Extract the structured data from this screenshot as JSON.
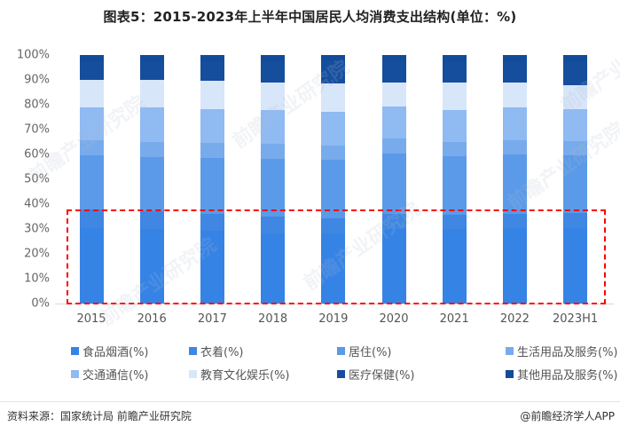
{
  "title": "图表5：2015-2023年上半年中国居民人均消费支出结构(单位：%)",
  "footer": {
    "source": "资料来源：国家统计局 前瞻产业研究院",
    "credit": "@前瞻经济学人APP"
  },
  "watermark": "前瞻产业研究院",
  "highlight_box": {
    "color": "#ff0000",
    "style": "dashed",
    "covers_y_range": [
      0,
      38
    ]
  },
  "y_ticks": [
    "100%",
    "90%",
    "80%",
    "70%",
    "60%",
    "50%",
    "40%",
    "30%",
    "20%",
    "10%",
    "0%"
  ],
  "legend": [
    {
      "label": "食品烟酒(%)",
      "color": "#3683e6"
    },
    {
      "label": "衣着(%)",
      "color": "#3f87e2"
    },
    {
      "label": "居住(%)",
      "color": "#5b9ae8"
    },
    {
      "label": "生活用品及服务(%)",
      "color": "#78abeb"
    },
    {
      "label": "交通通信(%)",
      "color": "#8fbaf2"
    },
    {
      "label": "教育文化娱乐(%)",
      "color": "#d8e6fa"
    },
    {
      "label": "医疗保健(%)",
      "color": "#164e9e"
    },
    {
      "label": "其他用品及服务(%)",
      "color": "#134b9b"
    }
  ],
  "chart_data": {
    "type": "bar",
    "stacked": true,
    "title": "图表5：2015-2023年上半年中国居民人均消费支出结构(单位：%)",
    "xlabel": "",
    "ylabel": "",
    "ylim": [
      0,
      100
    ],
    "y_format": "percent",
    "grid": false,
    "legend_position": "bottom",
    "categories": [
      "2015",
      "2016",
      "2017",
      "2018",
      "2019",
      "2020",
      "2021",
      "2022",
      "2023H1"
    ],
    "series": [
      {
        "name": "食品烟酒(%)",
        "values": [
          30.6,
          30.1,
          29.3,
          28.4,
          28.2,
          30.2,
          29.8,
          30.5,
          30.4
        ]
      },
      {
        "name": "衣着(%)",
        "values": [
          7.4,
          7.0,
          6.8,
          6.5,
          6.2,
          5.8,
          5.9,
          5.6,
          6.1
        ]
      },
      {
        "name": "居住(%)",
        "values": [
          21.8,
          21.9,
          22.4,
          23.4,
          23.4,
          24.6,
          23.4,
          24.0,
          23.2
        ]
      },
      {
        "name": "生活用品及服务(%)",
        "values": [
          6.1,
          6.1,
          6.1,
          6.2,
          5.9,
          5.9,
          5.7,
          5.8,
          5.7
        ]
      },
      {
        "name": "交通通信(%)",
        "values": [
          13.3,
          13.7,
          13.6,
          13.5,
          13.3,
          13.0,
          13.1,
          13.0,
          12.9
        ]
      },
      {
        "name": "教育文化娱乐(%)",
        "values": [
          11.0,
          11.2,
          11.4,
          11.2,
          11.7,
          9.6,
          10.8,
          10.1,
          9.6
        ]
      },
      {
        "name": "医疗保健(%)",
        "values": [
          7.4,
          7.6,
          7.9,
          8.5,
          8.8,
          8.7,
          8.8,
          8.6,
          9.6
        ]
      },
      {
        "name": "其他用品及服务(%)",
        "values": [
          2.6,
          2.4,
          2.5,
          2.4,
          2.5,
          2.3,
          2.4,
          2.4,
          2.5
        ]
      }
    ]
  }
}
